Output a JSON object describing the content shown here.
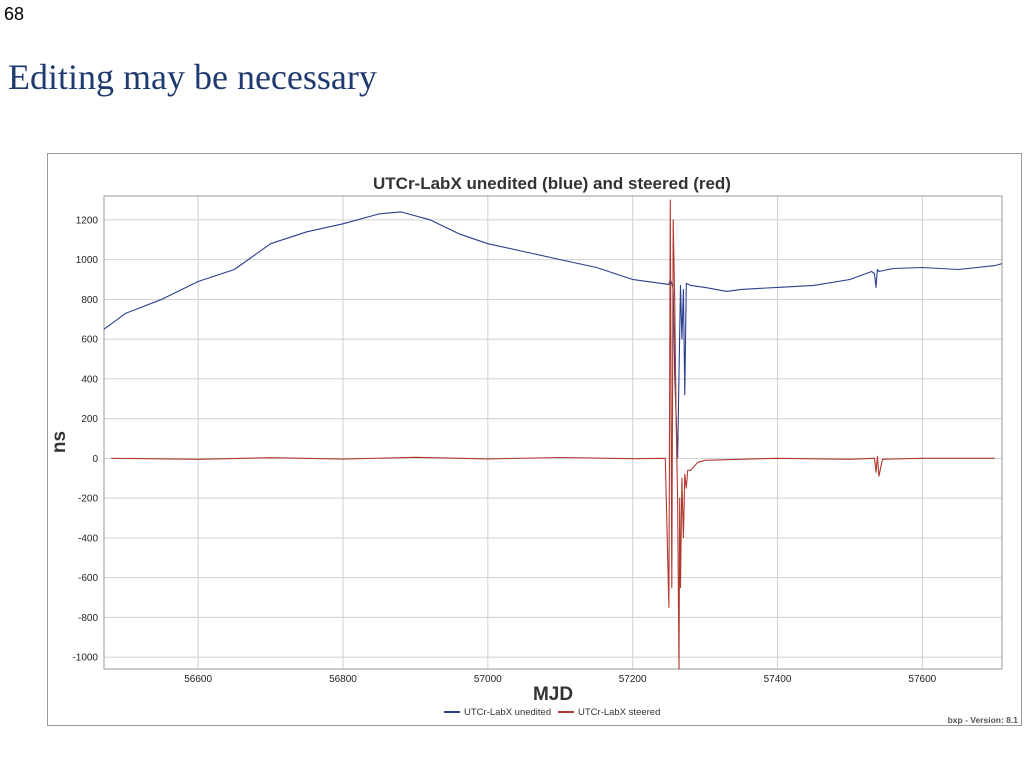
{
  "slide": {
    "number": "68",
    "title": "Editing may be necessary"
  },
  "colors": {
    "title": "#1f3a6e",
    "unedited": "#2a3f8f",
    "steered": "#b03a2e",
    "grid": "#d0d0d0"
  },
  "chart_data": {
    "type": "line",
    "title": "UTCr-LabX unedited (blue) and steered (red)",
    "xlabel": "MJD",
    "ylabel": "ns",
    "xlim": [
      56470,
      57710
    ],
    "ylim": [
      -1060,
      1320
    ],
    "xticks": [
      56600,
      56800,
      57000,
      57200,
      57400,
      57600
    ],
    "yticks": [
      1200,
      1000,
      800,
      600,
      400,
      200,
      0,
      -200,
      -400,
      -600,
      -800,
      -1000
    ],
    "grid": true,
    "legend_position": "bottom-center",
    "legend": [
      "UTCr-LabX unedited",
      "UTCr-LabX steered"
    ],
    "footer": "bxp - Version: 8.1",
    "series": [
      {
        "name": "UTCr-LabX unedited",
        "color": "#2a3f8f",
        "x": [
          56470,
          56500,
          56550,
          56600,
          56650,
          56700,
          56750,
          56800,
          56850,
          56880,
          56920,
          56960,
          57000,
          57050,
          57100,
          57150,
          57200,
          57250,
          57252,
          57254,
          57256,
          57258,
          57262,
          57266,
          57268,
          57270,
          57272,
          57274,
          57280,
          57300,
          57330,
          57350,
          57400,
          57450,
          57500,
          57530,
          57534,
          57536,
          57538,
          57540,
          57560,
          57600,
          57650,
          57700,
          57710
        ],
        "y": [
          650,
          730,
          800,
          890,
          950,
          1080,
          1140,
          1180,
          1230,
          1240,
          1200,
          1130,
          1080,
          1040,
          1000,
          960,
          900,
          875,
          900,
          880,
          850,
          420,
          0,
          870,
          600,
          850,
          320,
          880,
          870,
          860,
          840,
          850,
          860,
          870,
          900,
          940,
          930,
          860,
          950,
          940,
          955,
          960,
          950,
          970,
          980
        ]
      },
      {
        "name": "UTCr-LabX steered",
        "color": "#b03a2e",
        "x": [
          56480,
          56600,
          56700,
          56800,
          56900,
          57000,
          57100,
          57200,
          57245,
          57250,
          57252,
          57254,
          57256,
          57258,
          57260,
          57262,
          57264,
          57265,
          57266,
          57268,
          57270,
          57272,
          57274,
          57276,
          57280,
          57290,
          57300,
          57400,
          57500,
          57534,
          57536,
          57538,
          57540,
          57545,
          57600,
          57700
        ],
        "y": [
          0,
          -5,
          3,
          -4,
          5,
          -3,
          4,
          -2,
          0,
          -750,
          1300,
          -650,
          1200,
          800,
          200,
          -200,
          -1060,
          -200,
          -650,
          -100,
          -400,
          -80,
          -150,
          -60,
          -60,
          -20,
          -10,
          0,
          -5,
          0,
          -70,
          10,
          -90,
          -5,
          0,
          0
        ]
      }
    ]
  }
}
